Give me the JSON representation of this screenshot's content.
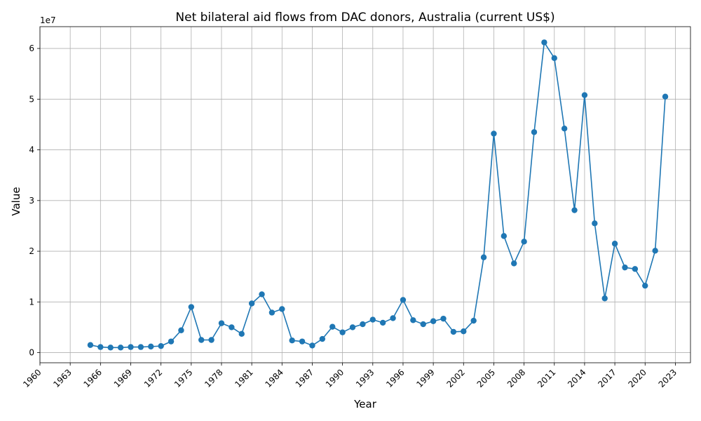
{
  "chart_data": {
    "type": "line",
    "title": "Net bilateral aid flows from DAC donors, Australia (current US$)",
    "xlabel": "Year",
    "ylabel": "Value",
    "y_multiplier_label": "1e7",
    "xlim": [
      1960,
      2024.5
    ],
    "ylim": [
      -2000000,
      64300000
    ],
    "x_ticks": [
      1960,
      1963,
      1966,
      1969,
      1972,
      1975,
      1978,
      1981,
      1984,
      1987,
      1990,
      1993,
      1996,
      1999,
      2002,
      2005,
      2008,
      2011,
      2014,
      2017,
      2020,
      2023
    ],
    "y_ticks": [
      0,
      10000000,
      20000000,
      30000000,
      40000000,
      50000000,
      60000000
    ],
    "y_tick_labels": [
      "0",
      "1",
      "2",
      "3",
      "4",
      "5",
      "6"
    ],
    "grid": true,
    "line_color": "#1f77b4",
    "series": [
      {
        "x": [
          1965,
          1966,
          1967,
          1968,
          1969,
          1970,
          1971,
          1972,
          1973,
          1974,
          1975,
          1976,
          1977,
          1978,
          1979,
          1980,
          1981,
          1982,
          1983,
          1984,
          1985,
          1986,
          1987,
          1988,
          1989,
          1990,
          1991,
          1992,
          1993,
          1994,
          1995,
          1996,
          1997,
          1998,
          1999,
          2000,
          2001,
          2002,
          2003,
          2004,
          2005,
          2006,
          2007,
          2008,
          2009,
          2010,
          2011,
          2012,
          2013,
          2014,
          2015,
          2016,
          2017,
          2018,
          2019,
          2020,
          2021,
          2022
        ],
        "values": [
          1500000,
          1100000,
          1000000,
          1000000,
          1100000,
          1100000,
          1200000,
          1300000,
          2200000,
          4400000,
          9000000,
          2500000,
          2500000,
          5800000,
          5000000,
          3700000,
          9700000,
          11500000,
          7900000,
          8600000,
          2400000,
          2200000,
          1400000,
          2700000,
          5100000,
          4000000,
          5000000,
          5600000,
          6500000,
          5900000,
          6800000,
          10400000,
          6400000,
          5600000,
          6200000,
          6700000,
          4100000,
          4200000,
          6300000,
          18800000,
          43200000,
          23000000,
          17600000,
          21900000,
          43500000,
          61200000,
          58100000,
          44200000,
          28100000,
          50800000,
          25500000,
          10700000,
          21500000,
          16800000,
          16500000,
          13200000,
          20100000,
          50500000
        ]
      }
    ]
  }
}
